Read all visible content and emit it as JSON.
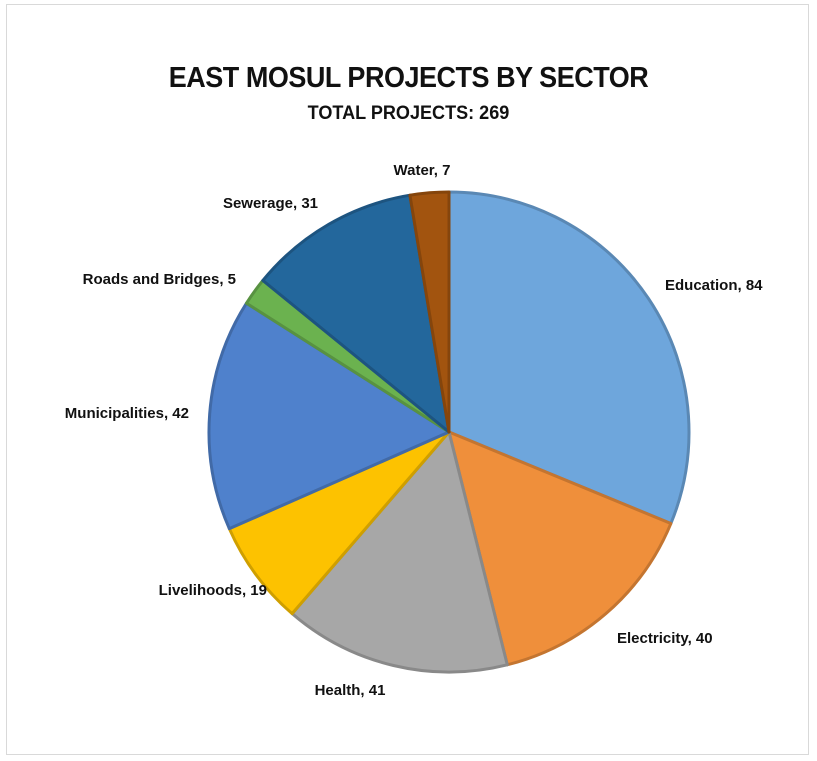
{
  "chart_data": {
    "type": "pie",
    "title": "EAST MOSUL PROJECTS BY SECTOR",
    "subtitle": "TOTAL PROJECTS: 269",
    "start_angle_deg": 0,
    "direction": "clockwise",
    "slices": [
      {
        "label": "Education",
        "value": 84,
        "color": "#6ea6dc",
        "display": "Education, 84"
      },
      {
        "label": "Electricity",
        "value": 40,
        "color": "#ef8f3b",
        "display": "Electricity, 40"
      },
      {
        "label": "Health",
        "value": 41,
        "color": "#a7a7a7",
        "display": "Health, 41"
      },
      {
        "label": "Livelihoods",
        "value": 19,
        "color": "#fdc200",
        "display": "Livelihoods, 19"
      },
      {
        "label": "Municipalities",
        "value": 42,
        "color": "#4f81cc",
        "display": "Municipalities, 42"
      },
      {
        "label": "Roads and Bridges",
        "value": 5,
        "color": "#6bb24f",
        "display": "Roads and Bridges, 5"
      },
      {
        "label": "Sewerage",
        "value": 31,
        "color": "#23679c",
        "display": "Sewerage, 31"
      },
      {
        "label": "Water",
        "value": 7,
        "color": "#a2540f",
        "display": "Water, 7"
      }
    ]
  }
}
